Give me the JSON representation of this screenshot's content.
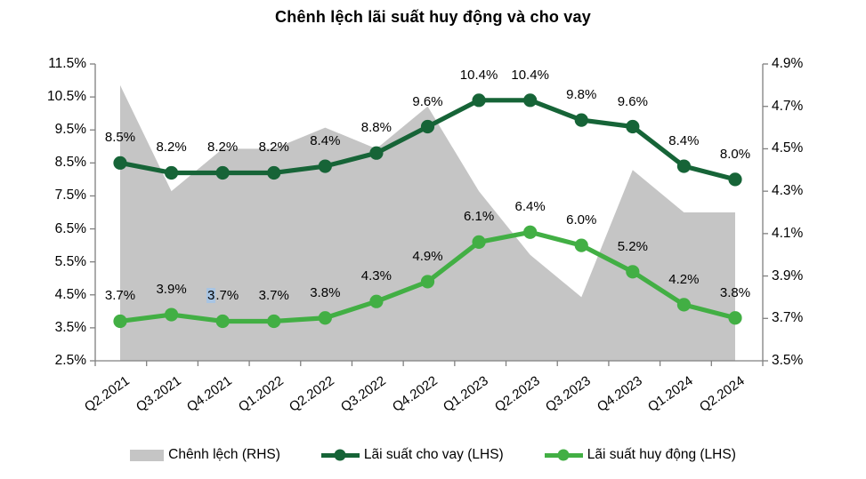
{
  "chart_data": {
    "type": "combo",
    "title": "Chênh lệch lãi suất huy động và cho vay",
    "categories": [
      "Q2.2021",
      "Q3.2021",
      "Q4.2021",
      "Q1.2022",
      "Q2.2022",
      "Q3.2022",
      "Q4.2022",
      "Q1.2023",
      "Q2.2023",
      "Q3.2023",
      "Q4.2023",
      "Q1.2024",
      "Q2.2024"
    ],
    "left_axis": {
      "min": 2.5,
      "max": 11.5,
      "step": 1.0,
      "tick_labels": [
        "11.5%",
        "10.5%",
        "9.5%",
        "8.5%",
        "7.5%",
        "6.5%",
        "5.5%",
        "4.5%",
        "3.5%",
        "2.5%"
      ]
    },
    "right_axis": {
      "min": 3.5,
      "max": 4.9,
      "step": 0.2,
      "tick_labels": [
        "4.9%",
        "4.7%",
        "4.5%",
        "4.3%",
        "4.1%",
        "3.9%",
        "3.7%",
        "3.5%"
      ]
    },
    "series": [
      {
        "name": "Chênh lệch (RHS)",
        "type": "area",
        "axis": "right",
        "color": "#c5c5c5",
        "values": [
          4.8,
          4.3,
          4.5,
          4.5,
          4.6,
          4.5,
          4.7,
          4.3,
          4.0,
          3.8,
          4.4,
          4.2,
          4.2
        ]
      },
      {
        "name": "Lãi suất cho vay (LHS)",
        "type": "line",
        "axis": "left",
        "color": "#166437",
        "values": [
          8.5,
          8.2,
          8.2,
          8.2,
          8.4,
          8.8,
          9.6,
          10.4,
          10.4,
          9.8,
          9.6,
          8.4,
          8.0
        ],
        "labels": [
          "8.5%",
          "8.2%",
          "8.2%",
          "8.2%",
          "8.4%",
          "8.8%",
          "9.6%",
          "10.4%",
          "10.4%",
          "9.8%",
          "9.6%",
          "8.4%",
          "8.0%"
        ]
      },
      {
        "name": "Lãi suất huy động (LHS)",
        "type": "line",
        "axis": "left",
        "color": "#42af44",
        "values": [
          3.7,
          3.9,
          3.7,
          3.7,
          3.8,
          4.3,
          4.9,
          6.1,
          6.4,
          6.0,
          5.2,
          4.2,
          3.8
        ],
        "labels": [
          "3.7%",
          "3.9%",
          "3.7%",
          "3.7%",
          "3.8%",
          "4.3%",
          "4.9%",
          "6.1%",
          "6.4%",
          "6.0%",
          "5.2%",
          "4.2%",
          "3.8%"
        ]
      }
    ],
    "annotation_highlight": {
      "series_index": 2,
      "point_index": 2,
      "chars": 1,
      "color": "#a8c4e2"
    },
    "legend_position": "bottom",
    "grid": false,
    "axis_color": "#808080"
  }
}
